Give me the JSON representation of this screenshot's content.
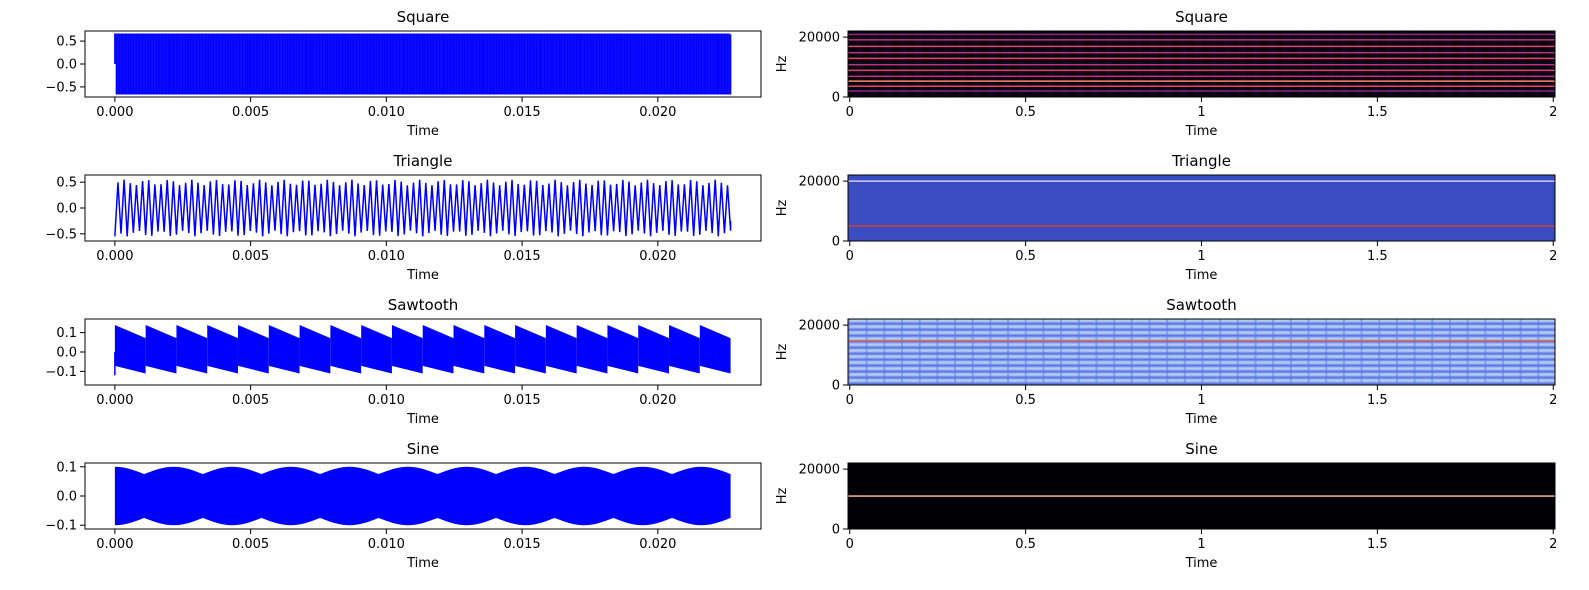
{
  "chart_data": [
    {
      "type": "line",
      "title": "Square",
      "xlabel": "Time",
      "ylabel": "",
      "xlim": [
        -0.0011,
        0.0238
      ],
      "ylim": [
        -0.72,
        0.72
      ],
      "xticks": [
        0.0,
        0.005,
        0.01,
        0.015,
        0.02
      ],
      "xtick_labels": [
        "0.000",
        "0.005",
        "0.010",
        "0.015",
        "0.020"
      ],
      "yticks": [
        -0.5,
        0.0,
        0.5
      ],
      "ytick_labels": [
        "−0.5",
        "0.0",
        "0.5"
      ],
      "series": [
        {
          "waveform": "square",
          "amplitude": 0.65,
          "cycles": 200,
          "x_end": 0.02268,
          "color": "#0000ff"
        }
      ]
    },
    {
      "type": "heatmap",
      "title": "Square",
      "xlabel": "Time",
      "ylabel": "Hz",
      "xlim": [
        -0.005,
        2.005
      ],
      "ylim": [
        0,
        22050
      ],
      "xticks": [
        0,
        0.5,
        1,
        1.5,
        2
      ],
      "xtick_labels": [
        "0",
        "0.5",
        "1",
        "1.5",
        "2"
      ],
      "yticks": [
        0,
        20000
      ],
      "ytick_labels": [
        "0",
        "20000"
      ],
      "colormap": "magma",
      "background": "#0e0718",
      "bands": [
        {
          "hz": 20900,
          "color": "#8c2981"
        },
        {
          "hz": 19100,
          "color": "#b73779"
        },
        {
          "hz": 16900,
          "color": "#de4968"
        },
        {
          "hz": 14800,
          "color": "#b73779"
        },
        {
          "hz": 12900,
          "color": "#de4968"
        },
        {
          "hz": 10800,
          "color": "#b73779"
        },
        {
          "hz": 8900,
          "color": "#de4968"
        },
        {
          "hz": 6900,
          "color": "#b73779"
        },
        {
          "hz": 5300,
          "color": "#fc8961"
        },
        {
          "hz": 3600,
          "color": "#de4968"
        },
        {
          "hz": 2000,
          "color": "#8c2981"
        }
      ]
    },
    {
      "type": "line",
      "title": "Triangle",
      "xlabel": "Time",
      "ylabel": "",
      "xlim": [
        -0.0011,
        0.0238
      ],
      "ylim": [
        -0.64,
        0.64
      ],
      "xticks": [
        0.0,
        0.005,
        0.01,
        0.015,
        0.02
      ],
      "xtick_labels": [
        "0.000",
        "0.005",
        "0.010",
        "0.015",
        "0.020"
      ],
      "yticks": [
        -0.5,
        0.0,
        0.5
      ],
      "ytick_labels": [
        "−0.5",
        "0.0",
        "0.5"
      ],
      "series": [
        {
          "waveform": "triangle",
          "amplitude": 0.55,
          "cycles": 100,
          "x_end": 0.02268,
          "color": "#0000ff"
        }
      ]
    },
    {
      "type": "heatmap",
      "title": "Triangle",
      "xlabel": "Time",
      "ylabel": "Hz",
      "xlim": [
        -0.005,
        2.005
      ],
      "ylim": [
        0,
        22050
      ],
      "xticks": [
        0,
        0.5,
        1,
        1.5,
        2
      ],
      "xtick_labels": [
        "0",
        "0.5",
        "1",
        "1.5",
        "2"
      ],
      "yticks": [
        0,
        20000
      ],
      "ytick_labels": [
        "0",
        "20000"
      ],
      "colormap": "coolwarm",
      "background": "#3b4cc0",
      "bands": [
        {
          "hz": 20000,
          "color": "#c8d0f0"
        },
        {
          "hz": 5000,
          "color": "#d04030"
        }
      ]
    },
    {
      "type": "line",
      "title": "Sawtooth",
      "xlabel": "Time",
      "ylabel": "",
      "xlim": [
        -0.0011,
        0.0238
      ],
      "ylim": [
        -0.17,
        0.17
      ],
      "xticks": [
        0.0,
        0.005,
        0.01,
        0.015,
        0.02
      ],
      "xtick_labels": [
        "0.000",
        "0.005",
        "0.010",
        "0.015",
        "0.020"
      ],
      "yticks": [
        -0.1,
        0.0,
        0.1
      ],
      "ytick_labels": [
        "−0.1",
        "0.0",
        "0.1"
      ],
      "series": [
        {
          "waveform": "sawtooth",
          "amplitude": 0.13,
          "envelope_periods": 20,
          "x_end": 0.02268,
          "color": "#0000ff"
        }
      ]
    },
    {
      "type": "heatmap",
      "title": "Sawtooth",
      "xlabel": "Time",
      "ylabel": "Hz",
      "xlim": [
        -0.005,
        2.005
      ],
      "ylim": [
        0,
        22050
      ],
      "xticks": [
        0,
        0.5,
        1,
        1.5,
        2
      ],
      "xtick_labels": [
        "0",
        "0.5",
        "1",
        "1.5",
        "2"
      ],
      "yticks": [
        0,
        20000
      ],
      "ytick_labels": [
        "0",
        "20000"
      ],
      "colormap": "coolwarm",
      "background": "#8db0fe",
      "bands": [
        {
          "hz": 14800,
          "color": "#e0654f"
        }
      ]
    },
    {
      "type": "line",
      "title": "Sine",
      "xlabel": "Time",
      "ylabel": "",
      "xlim": [
        -0.0011,
        0.0238
      ],
      "ylim": [
        -0.113,
        0.113
      ],
      "xticks": [
        0.0,
        0.005,
        0.01,
        0.015,
        0.02
      ],
      "xtick_labels": [
        "0.000",
        "0.005",
        "0.010",
        "0.015",
        "0.020"
      ],
      "yticks": [
        -0.1,
        0.0,
        0.1
      ],
      "ytick_labels": [
        "−0.1",
        "0.0",
        "0.1"
      ],
      "series": [
        {
          "waveform": "sine",
          "amplitude": 0.1,
          "envelope_min": 0.075,
          "envelope_periods": 10.5,
          "x_end": 0.02268,
          "color": "#0000ff"
        }
      ]
    },
    {
      "type": "heatmap",
      "title": "Sine",
      "xlabel": "Time",
      "ylabel": "Hz",
      "xlim": [
        -0.005,
        2.005
      ],
      "ylim": [
        0,
        22050
      ],
      "xticks": [
        0,
        0.5,
        1,
        1.5,
        2
      ],
      "xtick_labels": [
        "0",
        "0.5",
        "1",
        "1.5",
        "2"
      ],
      "yticks": [
        0,
        20000
      ],
      "ytick_labels": [
        "0",
        "20000"
      ],
      "colormap": "magma",
      "background": "#000004",
      "bands": [
        {
          "hz": 11000,
          "color": "#fcb88a"
        }
      ]
    }
  ]
}
